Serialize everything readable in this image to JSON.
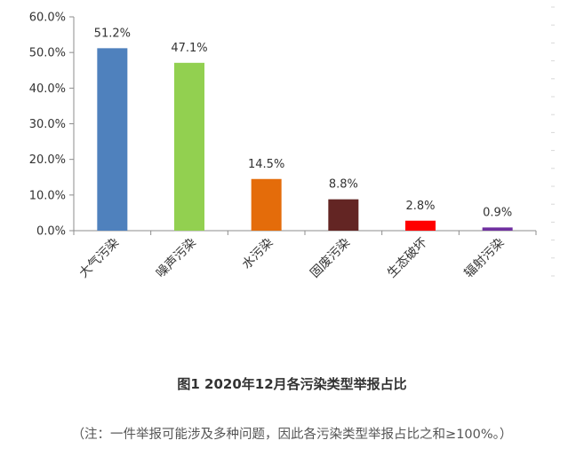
{
  "chart_data": {
    "type": "bar",
    "categories": [
      "大气污染",
      "噪声污染",
      "水污染",
      "固废污染",
      "生态破坏",
      "辐射污染"
    ],
    "values": [
      51.2,
      47.1,
      14.5,
      8.8,
      2.8,
      0.9
    ],
    "value_labels": [
      "51.2%",
      "47.1%",
      "14.5%",
      "8.8%",
      "2.8%",
      "0.9%"
    ],
    "colors": [
      "#4f81bd",
      "#92d050",
      "#e46c0a",
      "#632523",
      "#ff0000",
      "#7030a0"
    ],
    "yticks": [
      0,
      10,
      20,
      30,
      40,
      50,
      60
    ],
    "ytick_labels": [
      "0.0%",
      "10.0%",
      "20.0%",
      "30.0%",
      "40.0%",
      "50.0%",
      "60.0%"
    ],
    "ylim": [
      0,
      60
    ],
    "grid": false,
    "legend": "none"
  },
  "caption": "图1  2020年12月各污染类型举报占比",
  "note": "（注：一件举报可能涉及多种问题，因此各污染类型举报占比之和≥100%。）"
}
